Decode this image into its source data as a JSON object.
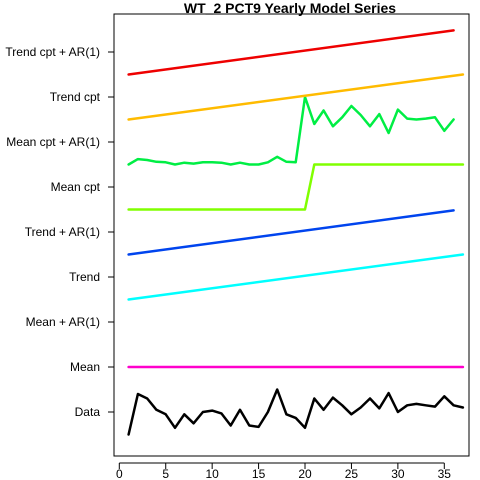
{
  "chart_data": {
    "type": "line",
    "title": "WT_2 PCT9 Yearly Model Series",
    "xlabel": "",
    "ylabel": "",
    "xlim": [
      0,
      38
    ],
    "xticks": [
      0,
      5,
      10,
      15,
      20,
      25,
      30,
      35
    ],
    "grid": false,
    "legend": "none",
    "row_labels": [
      "Data",
      "Mean",
      "Mean + AR(1)",
      "Trend",
      "Trend + AR(1)",
      "Mean cpt",
      "Mean cpt + AR(1)",
      "Trend cpt",
      "Trend cpt + AR(1)"
    ],
    "series": [
      {
        "label": "Data",
        "row": 0,
        "color": "#000000",
        "x": [
          1,
          2,
          3,
          4,
          5,
          6,
          7,
          8,
          9,
          10,
          11,
          12,
          13,
          14,
          15,
          16,
          17,
          18,
          19,
          20,
          21,
          22,
          23,
          24,
          25,
          26,
          27,
          28,
          29,
          30,
          31,
          32,
          33,
          34,
          35,
          36,
          37
        ],
        "y": [
          -0.5,
          0.4,
          0.3,
          0.05,
          -0.05,
          -0.35,
          -0.05,
          -0.25,
          0.0,
          0.03,
          -0.03,
          -0.3,
          0.05,
          -0.3,
          -0.33,
          0.0,
          0.5,
          -0.05,
          -0.13,
          -0.35,
          0.3,
          0.05,
          0.32,
          0.15,
          -0.05,
          0.1,
          0.3,
          0.08,
          0.42,
          0.0,
          0.15,
          0.18,
          0.15,
          0.12,
          0.35,
          0.15,
          0.1
        ]
      },
      {
        "label": "Mean",
        "row": 1,
        "color": "#ff00cc",
        "x": [
          1,
          37
        ],
        "y": [
          0,
          0
        ]
      },
      {
        "label": "Trend",
        "row": 3,
        "color": "#00ffff",
        "x": [
          1,
          37
        ],
        "y": [
          -0.5,
          0.5
        ]
      },
      {
        "label": "Trend + AR(1)",
        "row": 4,
        "color": "#0044ee",
        "x": [
          1,
          36
        ],
        "y": [
          -0.5,
          0.48
        ]
      },
      {
        "label": "Mean cpt",
        "row": 5,
        "color": "#80ff00",
        "x": [
          1,
          20,
          21,
          37
        ],
        "y": [
          -0.5,
          -0.5,
          0.5,
          0.5
        ]
      },
      {
        "label": "Mean cpt + AR(1)",
        "row": 6,
        "color": "#00ee44",
        "x": [
          1,
          2,
          3,
          4,
          5,
          6,
          7,
          8,
          9,
          10,
          11,
          12,
          13,
          14,
          15,
          16,
          17,
          18,
          19,
          20,
          21,
          22,
          23,
          24,
          25,
          26,
          27,
          28,
          29,
          30,
          31,
          32,
          33,
          34,
          35,
          36
        ],
        "y": [
          -0.5,
          -0.38,
          -0.4,
          -0.44,
          -0.45,
          -0.5,
          -0.46,
          -0.48,
          -0.45,
          -0.45,
          -0.46,
          -0.5,
          -0.46,
          -0.5,
          -0.5,
          -0.45,
          -0.33,
          -0.44,
          -0.45,
          1.0,
          0.4,
          0.7,
          0.35,
          0.55,
          0.8,
          0.6,
          0.35,
          0.62,
          0.2,
          0.72,
          0.52,
          0.5,
          0.52,
          0.55,
          0.25,
          0.5
        ]
      },
      {
        "label": "Trend cpt",
        "row": 7,
        "color": "#ffbb00",
        "x": [
          1,
          37
        ],
        "y": [
          -0.5,
          0.5
        ]
      },
      {
        "label": "Trend cpt + AR(1)",
        "row": 8,
        "color": "#ee0000",
        "x": [
          1,
          36
        ],
        "y": [
          -0.5,
          0.48
        ]
      }
    ]
  }
}
